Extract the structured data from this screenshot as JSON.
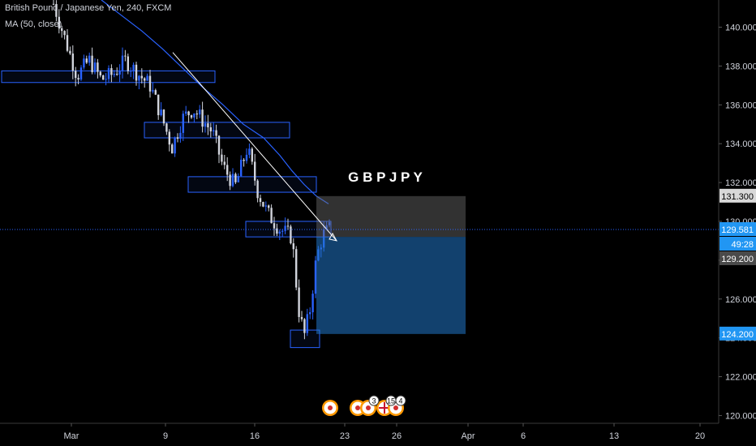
{
  "header": {
    "title": "British Pound / Japanese Yen, 240, FXCM",
    "indicator": "MA (50, close)"
  },
  "chart_data": {
    "type": "candlestick",
    "symbol_label": "G B P J P Y",
    "x_ticks": [
      "Mar",
      "9",
      "16",
      "23",
      "26",
      "Apr",
      "6",
      "13",
      "20"
    ],
    "y_ticks": [
      "120.000",
      "122.000",
      "124.000",
      "126.000",
      "128.000",
      "130.000",
      "132.000",
      "134.000",
      "136.000",
      "138.000",
      "140.000"
    ],
    "ylim": [
      119.6,
      141.4
    ],
    "price_labels": [
      {
        "text": "131.300",
        "value": 131.3,
        "bg": "#d8d8d8",
        "fg": "#000000"
      },
      {
        "text": "129.581",
        "value": 129.581,
        "bg": "#2196f3",
        "fg": "#ffffff"
      },
      {
        "text": "49:28",
        "value": 128.75,
        "bg": "#2196f3",
        "fg": "#ffffff"
      },
      {
        "text": "129.200",
        "value": 129.2,
        "bg": "#4a4a4a",
        "fg": "#ffffff"
      },
      {
        "text": "124.200",
        "value": 124.2,
        "bg": "#2196f3",
        "fg": "#ffffff"
      }
    ],
    "current_price": 129.581,
    "position": {
      "entry": 129.2,
      "stop": 131.3,
      "target": 124.2
    },
    "zones": [
      {
        "low": 137.15,
        "high": 137.75
      },
      {
        "low": 134.3,
        "high": 135.1
      },
      {
        "low": 131.5,
        "high": 132.3
      },
      {
        "low": 129.2,
        "high": 130.0
      },
      {
        "low": 123.5,
        "high": 124.4
      }
    ],
    "event_badges": [
      "3",
      "15",
      "4"
    ],
    "colors": {
      "up": "#2962ff",
      "down": "#d1d4dc",
      "ma": "#2962ff",
      "zone": "#2962ff",
      "trendline": "#ffffff",
      "background": "#000000"
    }
  }
}
